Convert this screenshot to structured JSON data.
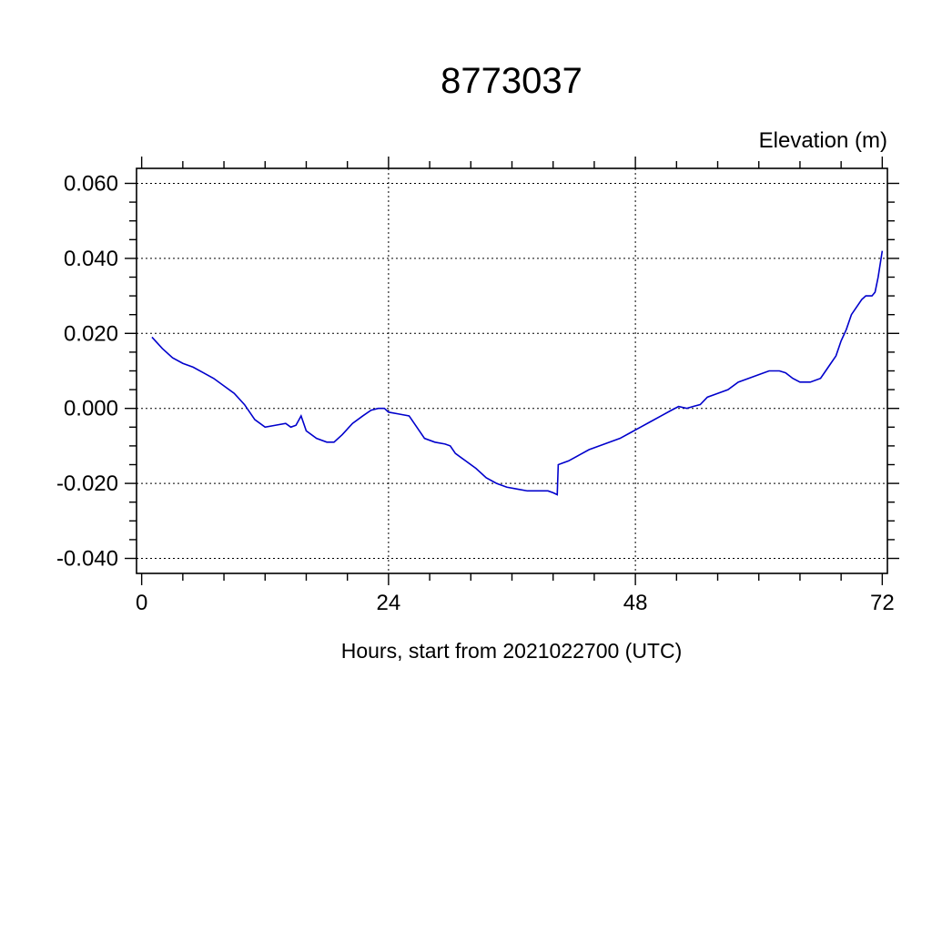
{
  "page": {
    "background": "#ffffff"
  },
  "chart_data": {
    "type": "line",
    "title": "8773037",
    "ylabel": "Elevation (m)",
    "xlabel": "Hours, start from 2021022700 (UTC)",
    "xlim": [
      -0.5,
      72.5
    ],
    "ylim": [
      -0.044,
      0.064
    ],
    "x_major_ticks": [
      0,
      24,
      48,
      72
    ],
    "x_minor_step": 4,
    "y_major_ticks": [
      -0.04,
      -0.02,
      0.0,
      0.02,
      0.04,
      0.06
    ],
    "y_minor_step": 0.005,
    "y_tick_decimals": 3,
    "grid": true,
    "grid_style": "dashed",
    "frame_color": "#000000",
    "line_color": "#0000cc",
    "series": [
      {
        "name": "elevation",
        "points": [
          [
            1,
            0.019
          ],
          [
            2,
            0.016
          ],
          [
            3,
            0.0135
          ],
          [
            4,
            0.012
          ],
          [
            5,
            0.011
          ],
          [
            6,
            0.0095
          ],
          [
            7,
            0.008
          ],
          [
            8,
            0.006
          ],
          [
            9,
            0.004
          ],
          [
            10,
            0.001
          ],
          [
            11,
            -0.003
          ],
          [
            12,
            -0.005
          ],
          [
            13,
            -0.0045
          ],
          [
            14,
            -0.004
          ],
          [
            14.5,
            -0.005
          ],
          [
            15,
            -0.0045
          ],
          [
            15.5,
            -0.002
          ],
          [
            16,
            -0.006
          ],
          [
            17,
            -0.008
          ],
          [
            18,
            -0.009
          ],
          [
            18.7,
            -0.009
          ],
          [
            19.5,
            -0.007
          ],
          [
            20.5,
            -0.004
          ],
          [
            21.5,
            -0.002
          ],
          [
            22.3,
            -0.0005
          ],
          [
            23,
            0
          ],
          [
            23.6,
            0
          ],
          [
            24,
            -0.001
          ],
          [
            25,
            -0.0015
          ],
          [
            26,
            -0.002
          ],
          [
            26.5,
            -0.004
          ],
          [
            27,
            -0.006
          ],
          [
            27.5,
            -0.008
          ],
          [
            28.5,
            -0.009
          ],
          [
            29.5,
            -0.0095
          ],
          [
            30,
            -0.01
          ],
          [
            30.5,
            -0.012
          ],
          [
            31.5,
            -0.014
          ],
          [
            32.5,
            -0.016
          ],
          [
            33.5,
            -0.0185
          ],
          [
            34.5,
            -0.02
          ],
          [
            35.5,
            -0.021
          ],
          [
            36.5,
            -0.0215
          ],
          [
            37.5,
            -0.022
          ],
          [
            38.5,
            -0.022
          ],
          [
            39.5,
            -0.022
          ],
          [
            40,
            -0.0225
          ],
          [
            40.4,
            -0.023
          ],
          [
            40.5,
            -0.015
          ],
          [
            41.5,
            -0.014
          ],
          [
            42.5,
            -0.0125
          ],
          [
            43.5,
            -0.011
          ],
          [
            44.5,
            -0.01
          ],
          [
            45.5,
            -0.009
          ],
          [
            46.5,
            -0.008
          ],
          [
            47.5,
            -0.0065
          ],
          [
            48.5,
            -0.005
          ],
          [
            49.5,
            -0.0035
          ],
          [
            50.5,
            -0.002
          ],
          [
            51.5,
            -0.0005
          ],
          [
            52.2,
            0.0005
          ],
          [
            53,
            0
          ],
          [
            53.6,
            0.0005
          ],
          [
            54.3,
            0.001
          ],
          [
            55,
            0.003
          ],
          [
            56,
            0.004
          ],
          [
            57,
            0.005
          ],
          [
            58,
            0.007
          ],
          [
            59,
            0.008
          ],
          [
            60,
            0.009
          ],
          [
            61,
            0.01
          ],
          [
            62,
            0.01
          ],
          [
            62.6,
            0.0095
          ],
          [
            63.3,
            0.008
          ],
          [
            64,
            0.007
          ],
          [
            65,
            0.007
          ],
          [
            66,
            0.008
          ],
          [
            66.5,
            0.01
          ],
          [
            67,
            0.012
          ],
          [
            67.5,
            0.014
          ],
          [
            68,
            0.018
          ],
          [
            68.5,
            0.021
          ],
          [
            69,
            0.025
          ],
          [
            69.5,
            0.027
          ],
          [
            70,
            0.029
          ],
          [
            70.4,
            0.03
          ],
          [
            71,
            0.03
          ],
          [
            71.3,
            0.031
          ],
          [
            71.6,
            0.035
          ],
          [
            72,
            0.042
          ]
        ]
      }
    ]
  }
}
